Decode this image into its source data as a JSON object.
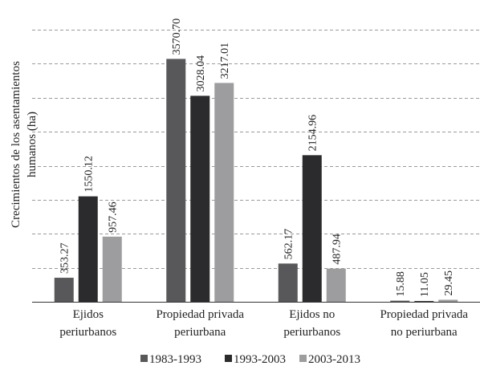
{
  "chart_data": {
    "type": "bar",
    "categories": [
      [
        "Ejidos",
        "periurbanos"
      ],
      [
        "Propiedad privada",
        "periurbana"
      ],
      [
        "Ejidos no",
        "periurbanos"
      ],
      [
        "Propiedad privada",
        "no periurbana"
      ]
    ],
    "series": [
      {
        "name": "1983-1993",
        "color": "#58585a",
        "values": [
          353.27,
          3570.7,
          562.17,
          15.88
        ],
        "labels": [
          "353.27",
          "3570.70",
          "562.17",
          "15.88"
        ]
      },
      {
        "name": "1993-2003",
        "color": "#2b2b2d",
        "values": [
          1550.12,
          3028.04,
          2154.96,
          11.05
        ],
        "labels": [
          "1550.12",
          "3028.04",
          "2154.96",
          "11.05"
        ]
      },
      {
        "name": "2003-2013",
        "color": "#9d9d9f",
        "values": [
          957.46,
          3217.01,
          487.94,
          29.45
        ],
        "labels": [
          "957.46",
          "3217.01",
          "487.94",
          "29.45"
        ]
      }
    ],
    "ylabel": [
      "Crecimientos de los asentamientos",
      "humanos (ha)"
    ],
    "ylim": [
      0,
      4000
    ],
    "grid": true,
    "gridline_step": 500,
    "legend_position": "bottom-center"
  }
}
